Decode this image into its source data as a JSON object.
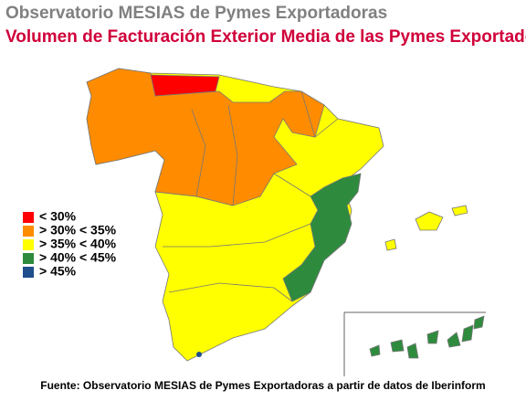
{
  "header": {
    "title": "Observatorio MESIAS de Pymes Exportadoras",
    "subtitle": "Volumen de Facturación Exterior Media de las Pymes Exportadoras"
  },
  "legend": [
    {
      "label": "< 30%",
      "color": "#ff0000"
    },
    {
      "label": "> 30% < 35%",
      "color": "#ff8c00"
    },
    {
      "label": "> 35% < 40%",
      "color": "#ffff00"
    },
    {
      "label": "> 40% < 45%",
      "color": "#2e8b3e"
    },
    {
      "label": "> 45%",
      "color": "#1f4e8c"
    }
  ],
  "source": "Fuente: Observatorio MESIAS de Pymes Exportadoras a partir de datos de Iberinform"
}
